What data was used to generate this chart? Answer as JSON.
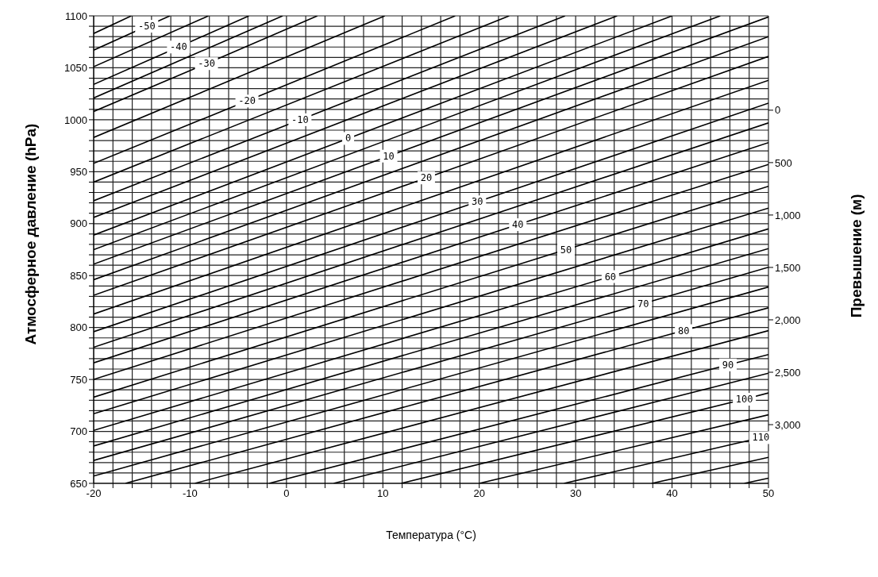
{
  "chart_data": {
    "type": "line",
    "xlabel": "Температура (°C)",
    "ylabel": "Атмосферное давление (hPa)",
    "y2label": "Превышение (м)",
    "xlim": [
      -20,
      50
    ],
    "ylim": [
      650,
      1100
    ],
    "y2lim": [
      3560,
      -900
    ],
    "xticks": [
      -20,
      {
        "value": -18,
        "label": null
      },
      {
        "value": -16,
        "label": null
      },
      {
        "value": -14,
        "label": null
      },
      {
        "value": -12,
        "label": null
      },
      -10,
      {
        "value": -8,
        "label": null
      },
      {
        "value": -6,
        "label": null
      },
      {
        "value": -4,
        "label": null
      },
      {
        "value": -2,
        "label": null
      },
      0,
      {
        "value": 2,
        "label": null
      },
      {
        "value": 4,
        "label": null
      },
      {
        "value": 6,
        "label": null
      },
      {
        "value": 8,
        "label": null
      },
      10,
      {
        "value": 12,
        "label": null
      },
      {
        "value": 14,
        "label": null
      },
      {
        "value": 16,
        "label": null
      },
      {
        "value": 18,
        "label": null
      },
      20,
      {
        "value": 22,
        "label": null
      },
      {
        "value": 24,
        "label": null
      },
      {
        "value": 26,
        "label": null
      },
      {
        "value": 28,
        "label": null
      },
      30,
      {
        "value": 32,
        "label": null
      },
      {
        "value": 34,
        "label": null
      },
      {
        "value": 36,
        "label": null
      },
      {
        "value": 38,
        "label": null
      },
      40,
      {
        "value": 42,
        "label": null
      },
      {
        "value": 44,
        "label": null
      },
      {
        "value": 46,
        "label": null
      },
      {
        "value": 48,
        "label": null
      },
      50
    ],
    "yticks": [
      650,
      {
        "value": 660,
        "label": null
      },
      {
        "value": 670,
        "label": null
      },
      {
        "value": 680,
        "label": null
      },
      {
        "value": 690,
        "label": null
      },
      700,
      {
        "value": 710,
        "label": null
      },
      {
        "value": 720,
        "label": null
      },
      {
        "value": 730,
        "label": null
      },
      {
        "value": 740,
        "label": null
      },
      750,
      {
        "value": 760,
        "label": null
      },
      {
        "value": 770,
        "label": null
      },
      {
        "value": 780,
        "label": null
      },
      {
        "value": 790,
        "label": null
      },
      800,
      {
        "value": 810,
        "label": null
      },
      {
        "value": 820,
        "label": null
      },
      {
        "value": 830,
        "label": null
      },
      {
        "value": 840,
        "label": null
      },
      850,
      {
        "value": 860,
        "label": null
      },
      {
        "value": 870,
        "label": null
      },
      {
        "value": 880,
        "label": null
      },
      {
        "value": 890,
        "label": null
      },
      900,
      {
        "value": 910,
        "label": null
      },
      {
        "value": 920,
        "label": null
      },
      {
        "value": 930,
        "label": null
      },
      {
        "value": 940,
        "label": null
      },
      950,
      {
        "value": 960,
        "label": null
      },
      {
        "value": 970,
        "label": null
      },
      {
        "value": 980,
        "label": null
      },
      {
        "value": 990,
        "label": null
      },
      1000,
      {
        "value": 1010,
        "label": null
      },
      {
        "value": 1020,
        "label": null
      },
      {
        "value": 1030,
        "label": null
      },
      {
        "value": 1040,
        "label": null
      },
      1050,
      {
        "value": 1060,
        "label": null
      },
      {
        "value": 1070,
        "label": null
      },
      {
        "value": 1080,
        "label": null
      },
      {
        "value": 1090,
        "label": null
      },
      1100
    ],
    "y2ticks": [
      0,
      500,
      {
        "value": 1000,
        "label": "1,000"
      },
      {
        "value": 1500,
        "label": "1,500"
      },
      {
        "value": 2000,
        "label": "2,000"
      },
      {
        "value": 2500,
        "label": "2,500"
      },
      {
        "value": 3000,
        "label": "3,000"
      }
    ],
    "grid": true,
    "marker": "none",
    "line_style": "solid",
    "series": [
      {
        "color": "#000000",
        "x": [
          -20,
          -16.1
        ],
        "values": [
          1083,
          1100
        ]
      },
      {
        "name": "-50",
        "color": "#000000",
        "x": [
          -20,
          -14.5,
          -12.1
        ],
        "values": [
          1067,
          1090,
          1100
        ]
      },
      {
        "color": "#000000",
        "x": [
          -20,
          -8.1
        ],
        "values": [
          1051,
          1100
        ]
      },
      {
        "name": "-40",
        "color": "#000000",
        "x": [
          -20,
          -11.2,
          -3.9
        ],
        "values": [
          1034,
          1070,
          1100
        ]
      },
      {
        "color": "#000000",
        "x": [
          -20,
          -0.4
        ],
        "values": [
          1021,
          1100
        ]
      },
      {
        "name": "-30",
        "color": "#000000",
        "x": [
          -20,
          -8.3,
          3.2
        ],
        "values": [
          1008,
          1054,
          1100
        ]
      },
      {
        "color": "#000000",
        "x": [
          -20,
          10.2
        ],
        "values": [
          983,
          1100
        ]
      },
      {
        "name": "-20",
        "color": "#000000",
        "x": [
          -20,
          -4.1,
          17.5
        ],
        "values": [
          958,
          1018,
          1100
        ]
      },
      {
        "color": "#000000",
        "x": [
          -20,
          23.1
        ],
        "values": [
          940,
          1100
        ]
      },
      {
        "name": "-10",
        "color": "#000000",
        "x": [
          -20,
          1.4,
          28.9
        ],
        "values": [
          922,
          1000,
          1100
        ]
      },
      {
        "color": "#000000",
        "x": [
          -20,
          34.3
        ],
        "values": [
          906,
          1100
        ]
      },
      {
        "name": "0",
        "color": "#000000",
        "x": [
          -20,
          6.4,
          40
        ],
        "values": [
          889,
          982,
          1100
        ]
      },
      {
        "color": "#000000",
        "x": [
          -20,
          45
        ],
        "values": [
          875,
          1100
        ]
      },
      {
        "name": "10",
        "color": "#000000",
        "x": [
          -20,
          10.6,
          50
        ],
        "values": [
          861,
          965,
          1099
        ]
      },
      {
        "color": "#000000",
        "x": [
          -20,
          50
        ],
        "values": [
          846,
          1080
        ]
      },
      {
        "name": "20",
        "color": "#000000",
        "x": [
          -20,
          14.5,
          50
        ],
        "values": [
          831,
          944,
          1061
        ]
      },
      {
        "color": "#000000",
        "x": [
          -20,
          50
        ],
        "values": [
          813,
          1038
        ]
      },
      {
        "name": "30",
        "color": "#000000",
        "x": [
          -20,
          19.8,
          50
        ],
        "values": [
          796,
          921,
          1016
        ]
      },
      {
        "color": "#000000",
        "x": [
          -20,
          50
        ],
        "values": [
          781,
          997
        ]
      },
      {
        "name": "40",
        "color": "#000000",
        "x": [
          -20,
          24,
          50
        ],
        "values": [
          766,
          899,
          978
        ]
      },
      {
        "color": "#000000",
        "x": [
          -20,
          50
        ],
        "values": [
          750,
          957
        ]
      },
      {
        "name": "50",
        "color": "#000000",
        "x": [
          -20,
          29,
          50
        ],
        "values": [
          733,
          875,
          936
        ]
      },
      {
        "color": "#000000",
        "x": [
          -20,
          50
        ],
        "values": [
          717,
          915
        ]
      },
      {
        "name": "60",
        "color": "#000000",
        "x": [
          -20,
          33.6,
          50
        ],
        "values": [
          701,
          849,
          895
        ]
      },
      {
        "color": "#000000",
        "x": [
          -20,
          50
        ],
        "values": [
          686,
          876
        ]
      },
      {
        "name": "70",
        "color": "#000000",
        "x": [
          -20,
          37,
          50
        ],
        "values": [
          672,
          823,
          858
        ]
      },
      {
        "color": "#000000",
        "x": [
          -20,
          50
        ],
        "values": [
          657,
          839
        ]
      },
      {
        "name": "80",
        "color": "#000000",
        "x": [
          -16.7,
          41.2,
          50
        ],
        "values": [
          650,
          797,
          819
        ]
      },
      {
        "color": "#000000",
        "x": [
          -9.5,
          50
        ],
        "values": [
          650,
          797
        ]
      },
      {
        "name": "90",
        "color": "#000000",
        "x": [
          -1.8,
          45.8,
          50
        ],
        "values": [
          650,
          764,
          774
        ]
      },
      {
        "color": "#000000",
        "x": [
          4.9,
          50
        ],
        "values": [
          650,
          756
        ]
      },
      {
        "name": "100",
        "color": "#000000",
        "x": [
          11.9,
          47.5,
          50
        ],
        "values": [
          650,
          731,
          737
        ]
      },
      {
        "color": "#000000",
        "x": [
          20,
          50
        ],
        "values": [
          650,
          716
        ]
      },
      {
        "name": "110",
        "color": "#000000",
        "x": [
          28.8,
          49.2,
          50
        ],
        "values": [
          650,
          694,
          696
        ]
      },
      {
        "color": "#000000",
        "x": [
          37.9,
          50
        ],
        "values": [
          650,
          675
        ]
      },
      {
        "color": "#000000",
        "x": [
          47.5,
          50
        ],
        "values": [
          650,
          655
        ]
      }
    ]
  }
}
